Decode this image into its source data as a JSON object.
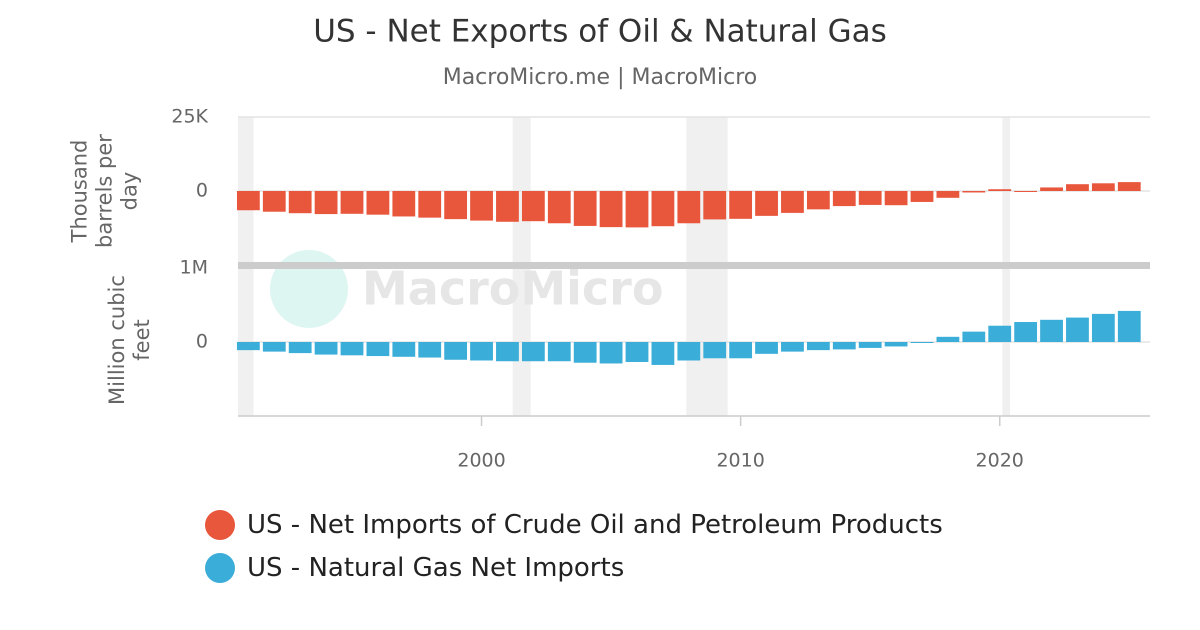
{
  "chart_data": {
    "type": "bar",
    "title": "US - Net Exports of Oil & Natural Gas",
    "subtitle": "MacroMicro.me | MacroMicro",
    "watermark": "MacroMicro",
    "x": [
      1991,
      1992,
      1993,
      1994,
      1995,
      1996,
      1997,
      1998,
      1999,
      2000,
      2001,
      2002,
      2003,
      2004,
      2005,
      2006,
      2007,
      2008,
      2009,
      2010,
      2011,
      2012,
      2013,
      2014,
      2015,
      2016,
      2017,
      2018,
      2019,
      2020,
      2021,
      2022,
      2023,
      2024,
      2025
    ],
    "xlim": [
      1990.6,
      2025.8
    ],
    "xticks": [
      2000,
      2010,
      2020
    ],
    "recessions": [
      [
        1990.6,
        1991.2
      ],
      [
        2001.2,
        2001.9
      ],
      [
        2007.9,
        2009.5
      ],
      [
        2020.1,
        2020.4
      ]
    ],
    "grid": true,
    "panels": [
      {
        "ylabel": "Thousand barrels per day",
        "ylim": [
          -25000,
          25000
        ],
        "yticks": [
          {
            "value": 25000,
            "label": "25K"
          },
          0
        ],
        "series": [
          {
            "name": "US - Net Imports of Crude Oil and Petroleum Products",
            "color": "#e8563c",
            "values": [
              -6500,
              -7000,
              -7500,
              -7800,
              -7700,
              -8000,
              -8600,
              -9000,
              -9500,
              -10000,
              -10400,
              -10200,
              -10900,
              -11800,
              -12200,
              -12300,
              -11900,
              -10900,
              -9600,
              -9400,
              -8400,
              -7400,
              -6200,
              -5100,
              -4700,
              -4800,
              -3700,
              -2300,
              -500,
              600,
              -100,
              1200,
              2300,
              2600,
              3000
            ]
          }
        ]
      },
      {
        "ylabel": "Million cubic feet",
        "ylim": [
          -1000000,
          1000000
        ],
        "yticks": [
          {
            "value": 1000000,
            "label": "1M"
          },
          0
        ],
        "series": [
          {
            "name": "US - Natural Gas Net Imports",
            "color": "#3badd9",
            "values": [
              -110000,
              -130000,
              -150000,
              -170000,
              -180000,
              -190000,
              -200000,
              -210000,
              -240000,
              -250000,
              -260000,
              -260000,
              -260000,
              -280000,
              -290000,
              -270000,
              -310000,
              -250000,
              -220000,
              -220000,
              -160000,
              -130000,
              -110000,
              -100000,
              -80000,
              -60000,
              -10000,
              70000,
              140000,
              220000,
              270000,
              300000,
              330000,
              380000,
              420000
            ]
          }
        ]
      }
    ]
  }
}
